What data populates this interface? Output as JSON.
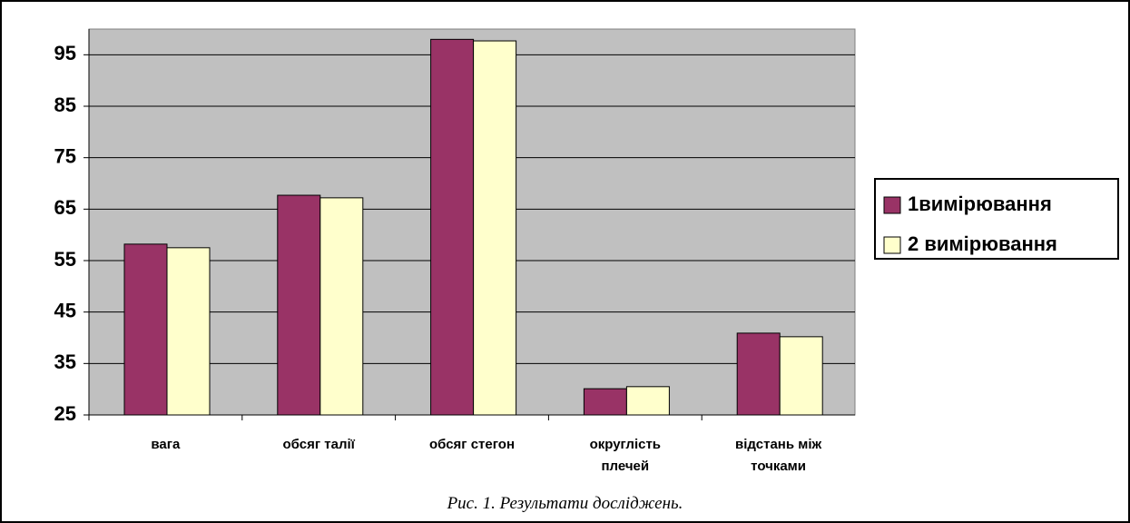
{
  "chart_data": {
    "type": "bar",
    "caption": "Рис. 1. Результати досліджень.",
    "categories": [
      "вага",
      "обсяг талії",
      "обсяг стегон",
      "округлість плечей",
      "відстань між точками"
    ],
    "series": [
      {
        "name": "1вимірювання",
        "color": "#993366",
        "values": [
          58.2,
          67.7,
          98,
          30.1,
          40.9
        ]
      },
      {
        "name": "2 вимірювання",
        "color": "#ffffcc",
        "values": [
          57.5,
          67.2,
          97.7,
          30.5,
          40.2
        ]
      }
    ],
    "ylim": [
      25,
      100
    ],
    "yticks": [
      25,
      35,
      45,
      55,
      65,
      75,
      85,
      95
    ],
    "grid": true,
    "legend": "right"
  }
}
